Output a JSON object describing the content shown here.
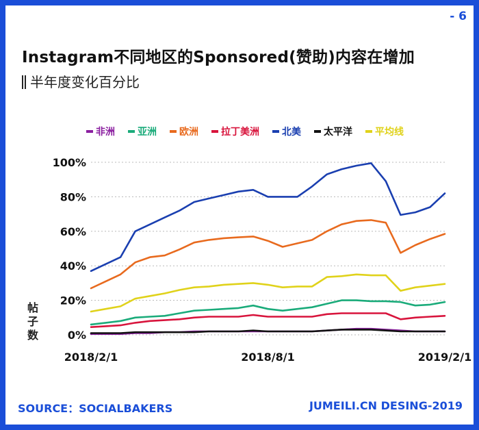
{
  "page_number": "- 6",
  "title": "Instagram不同地区的Sponsored(赞助)内容在增加",
  "subtitle": "半年度变化百分比",
  "y_axis_label_chars": [
    "帖",
    "子",
    "数"
  ],
  "source": "SOURCE：SOCIALBAKERS",
  "credit": "JUMEILI.CN DESING-2019",
  "colors": {
    "accent": "#1a4ed8",
    "grid": "#b8b8b8"
  },
  "chart_data": {
    "type": "line",
    "title": "Instagram不同地区的Sponsored(赞助)内容在增加",
    "subtitle": "半年度变化百分比",
    "ylabel": "帖子数",
    "xlabel": "",
    "ylim": [
      0,
      100
    ],
    "y_ticks": [
      "100%",
      "80%",
      "60%",
      "40%",
      "20%",
      "0%"
    ],
    "x_tick_labels": [
      "2018/2/1",
      "2018/8/1",
      "2019/2/1"
    ],
    "x_tick_indices": [
      0,
      12,
      24
    ],
    "grid": true,
    "legend_position": "top",
    "x_count": 25,
    "series": [
      {
        "name": "非洲",
        "color": "#8b1fa0",
        "values": [
          0.5,
          0.5,
          0.5,
          1,
          1,
          1.5,
          1.5,
          2,
          2,
          2,
          2,
          2,
          2,
          2,
          2,
          2,
          2.5,
          3,
          3.5,
          3.5,
          3,
          2.5,
          2,
          2,
          2
        ]
      },
      {
        "name": "亚洲",
        "color": "#1aab7a",
        "values": [
          6,
          7,
          8,
          10,
          10.5,
          11,
          12.5,
          14,
          14.5,
          15,
          15.5,
          17,
          15,
          14,
          15,
          16,
          18,
          20,
          20,
          19.5,
          19.5,
          19,
          17,
          17.5,
          19
        ]
      },
      {
        "name": "欧洲",
        "color": "#e86a1e",
        "values": [
          27,
          31,
          35,
          42,
          45,
          46,
          49.5,
          53.5,
          55,
          56,
          56.5,
          57,
          54.5,
          51,
          53,
          55,
          60,
          64,
          66,
          66.5,
          65,
          47.5,
          52,
          55.5,
          58.5
        ]
      },
      {
        "name": "拉丁美洲",
        "color": "#d8143c",
        "values": [
          4.5,
          5,
          5.5,
          7,
          8,
          8.5,
          9,
          10,
          10.5,
          10.5,
          10.5,
          11.5,
          10.5,
          10.5,
          10.5,
          10.5,
          12,
          12.5,
          12.5,
          12.5,
          12.5,
          9,
          10,
          10.5,
          11
        ]
      },
      {
        "name": "北美",
        "color": "#1a3fb0",
        "values": [
          37,
          41,
          45,
          60,
          64,
          68,
          72,
          77,
          79,
          81,
          83,
          84,
          80,
          80,
          80,
          86,
          93,
          96,
          98,
          99.5,
          89,
          69.5,
          71,
          74,
          82
        ]
      },
      {
        "name": "太平洋",
        "color": "#111111",
        "values": [
          1,
          1,
          1,
          1.5,
          1.5,
          1.5,
          1.5,
          1.5,
          2,
          2,
          2,
          2.5,
          2,
          2,
          2,
          2,
          2.5,
          3,
          3,
          3,
          2.5,
          2,
          2,
          2,
          2
        ]
      },
      {
        "name": "平均线",
        "color": "#e0d21a",
        "values": [
          13.5,
          15,
          16.5,
          21,
          22.5,
          24,
          26,
          27.5,
          28,
          29,
          29.5,
          30,
          29,
          27.5,
          28,
          28,
          33.5,
          34,
          35,
          34.5,
          34.5,
          25.5,
          27.5,
          28.5,
          29.5
        ]
      }
    ]
  }
}
